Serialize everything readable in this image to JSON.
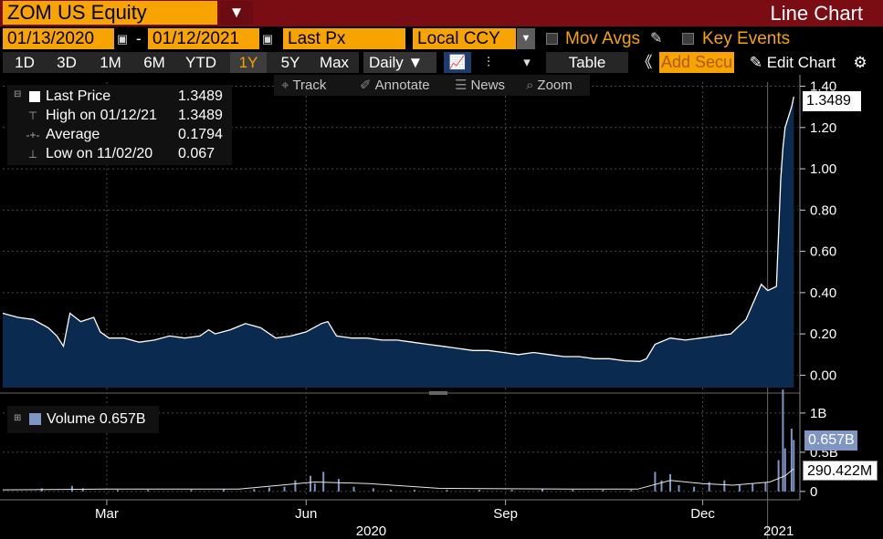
{
  "header": {
    "ticker": "ZOM US Equity",
    "menu_glyph": "▼",
    "chart_kind": "Line Chart"
  },
  "range": {
    "start_date": "01/13/2020",
    "dash": "-",
    "end_date": "01/12/2021",
    "field": "Last Px",
    "currency": "Local CCY",
    "mov_avgs_label": "Mov Avgs",
    "key_events_label": "Key Events"
  },
  "toolbar": {
    "periods": [
      "1D",
      "3D",
      "1M",
      "6M",
      "YTD",
      "1Y",
      "5Y",
      "Max"
    ],
    "selected_period": "1Y",
    "frequency": "Daily ▼",
    "table_label": "Table",
    "add_security_placeholder": "Add Secu",
    "edit_chart_label": "Edit Chart",
    "collapse_glyph": "《",
    "settings_glyph": "⚙"
  },
  "annotation_bar": {
    "track": "Track",
    "annotate": "Annotate",
    "news": "News",
    "zoom": "Zoom"
  },
  "legend": {
    "last_price_label": "Last Price",
    "last_price_value": "1.3489",
    "high_label": "High on 01/12/21",
    "high_value": "1.3489",
    "average_label": "Average",
    "average_value": "0.1794",
    "low_label": "Low on 11/02/20",
    "low_value": "0.067"
  },
  "volume_legend": {
    "label": "Volume 0.657B"
  },
  "colors": {
    "accent": "#f7a300",
    "title_bar": "#7a0c14",
    "price_line": "#ffffff",
    "price_fill": "#0b2a50",
    "volume_bar": "#7f96c4",
    "gridline": "#4a4a4a"
  },
  "chart_data": [
    {
      "type": "area",
      "title": "",
      "series": [
        {
          "name": "Last Price",
          "x": [
            "2020-01-13",
            "2020-01-20",
            "2020-01-27",
            "2020-02-03",
            "2020-02-07",
            "2020-02-10",
            "2020-02-13",
            "2020-02-18",
            "2020-02-24",
            "2020-02-27",
            "2020-03-02",
            "2020-03-09",
            "2020-03-16",
            "2020-03-23",
            "2020-03-30",
            "2020-04-06",
            "2020-04-13",
            "2020-04-17",
            "2020-04-20",
            "2020-04-27",
            "2020-05-04",
            "2020-05-11",
            "2020-05-18",
            "2020-05-25",
            "2020-06-01",
            "2020-06-08",
            "2020-06-11",
            "2020-06-15",
            "2020-06-22",
            "2020-06-29",
            "2020-07-06",
            "2020-07-13",
            "2020-07-20",
            "2020-07-27",
            "2020-08-03",
            "2020-08-10",
            "2020-08-17",
            "2020-08-24",
            "2020-08-31",
            "2020-09-07",
            "2020-09-14",
            "2020-09-21",
            "2020-09-28",
            "2020-10-05",
            "2020-10-12",
            "2020-10-19",
            "2020-10-26",
            "2020-11-02",
            "2020-11-05",
            "2020-11-09",
            "2020-11-16",
            "2020-11-23",
            "2020-11-30",
            "2020-12-07",
            "2020-12-14",
            "2020-12-21",
            "2020-12-28",
            "2020-12-31",
            "2021-01-04",
            "2021-01-06",
            "2021-01-07",
            "2021-01-08",
            "2021-01-11",
            "2021-01-12"
          ],
          "y": [
            0.3,
            0.28,
            0.27,
            0.23,
            0.19,
            0.14,
            0.3,
            0.26,
            0.28,
            0.21,
            0.18,
            0.18,
            0.16,
            0.17,
            0.19,
            0.18,
            0.19,
            0.22,
            0.2,
            0.22,
            0.25,
            0.23,
            0.18,
            0.19,
            0.21,
            0.25,
            0.26,
            0.19,
            0.18,
            0.18,
            0.17,
            0.17,
            0.16,
            0.15,
            0.14,
            0.13,
            0.12,
            0.12,
            0.11,
            0.1,
            0.11,
            0.1,
            0.09,
            0.09,
            0.08,
            0.08,
            0.07,
            0.067,
            0.08,
            0.15,
            0.18,
            0.17,
            0.18,
            0.19,
            0.2,
            0.27,
            0.44,
            0.41,
            0.43,
            0.95,
            1.1,
            1.2,
            1.3,
            1.3489
          ]
        }
      ],
      "ylim": [
        -0.06,
        1.42
      ],
      "yticks": [
        0.0,
        0.2,
        0.4,
        0.6,
        0.8,
        1.0,
        1.2,
        1.4
      ],
      "ytick_labels": [
        "0.00",
        "0.20",
        "0.40",
        "0.60",
        "0.80",
        "1.00",
        "1.20",
        "1.40"
      ],
      "last_value_label": "1.3489",
      "grid": true,
      "legend_position": "top-left"
    },
    {
      "type": "bar",
      "title": "",
      "series": [
        {
          "name": "Volume",
          "x": [
            "2020-01-31",
            "2020-02-14",
            "2020-02-19",
            "2020-03-06",
            "2020-03-20",
            "2020-04-09",
            "2020-04-24",
            "2020-05-08",
            "2020-05-15",
            "2020-05-22",
            "2020-05-27",
            "2020-06-03",
            "2020-06-05",
            "2020-06-09",
            "2020-06-16",
            "2020-06-23",
            "2020-07-02",
            "2020-07-10",
            "2020-07-21",
            "2020-08-05",
            "2020-08-20",
            "2020-09-04",
            "2020-09-18",
            "2020-10-02",
            "2020-10-16",
            "2020-10-29",
            "2020-11-09",
            "2020-11-12",
            "2020-11-16",
            "2020-11-20",
            "2020-11-27",
            "2020-12-04",
            "2020-12-11",
            "2020-12-18",
            "2020-12-24",
            "2020-12-30",
            "2021-01-05",
            "2021-01-07",
            "2021-01-08",
            "2021-01-11",
            "2021-01-12"
          ],
          "y": [
            0.04,
            0.07,
            0.04,
            0.02,
            0.02,
            0.02,
            0.03,
            0.03,
            0.05,
            0.06,
            0.14,
            0.2,
            0.1,
            0.25,
            0.16,
            0.06,
            0.04,
            0.02,
            0.02,
            0.02,
            0.02,
            0.02,
            0.03,
            0.02,
            0.02,
            0.02,
            0.25,
            0.14,
            0.22,
            0.08,
            0.06,
            0.12,
            0.14,
            0.08,
            0.1,
            0.12,
            0.4,
            1.3,
            0.55,
            0.8,
            0.657
          ]
        },
        {
          "name": "Average Volume",
          "x": [
            "2020-01-13",
            "2020-03-01",
            "2020-05-01",
            "2020-06-05",
            "2020-06-30",
            "2020-08-01",
            "2020-10-01",
            "2020-11-01",
            "2020-11-16",
            "2020-12-01",
            "2020-12-15",
            "2021-01-01",
            "2021-01-08",
            "2021-01-12"
          ],
          "y": [
            0.02,
            0.03,
            0.03,
            0.12,
            0.1,
            0.04,
            0.03,
            0.03,
            0.14,
            0.1,
            0.08,
            0.12,
            0.2,
            0.2904
          ]
        }
      ],
      "ylim": [
        -0.06,
        1.15
      ],
      "yticks": [
        0,
        0.5,
        1.0
      ],
      "ytick_labels": [
        "0",
        "0.5B",
        "1B"
      ],
      "last_value_label": "0.657B",
      "average_value_label": "290.422M",
      "grid": true
    }
  ],
  "x_axis": {
    "months": [
      {
        "label": "Mar",
        "date": "2020-03-01"
      },
      {
        "label": "Jun",
        "date": "2020-06-01"
      },
      {
        "label": "Sep",
        "date": "2020-09-01"
      },
      {
        "label": "Dec",
        "date": "2020-12-01"
      }
    ],
    "years": [
      {
        "label": "2020",
        "date": "2020-07-01"
      },
      {
        "label": "2021",
        "date": "2021-01-05"
      }
    ],
    "start": "2020-01-13",
    "end": "2021-01-12"
  }
}
